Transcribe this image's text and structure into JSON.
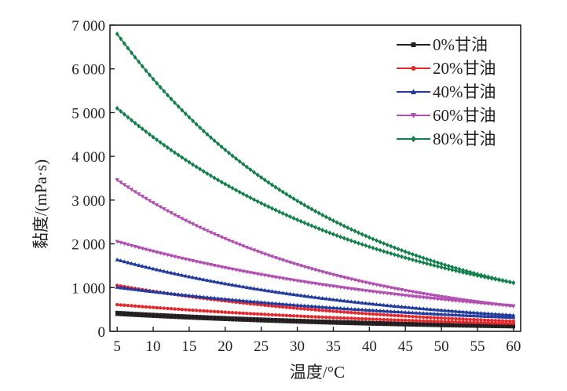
{
  "chart_data": {
    "type": "line",
    "xlabel": "温度/°C",
    "ylabel": "黏度/(mPa·s)",
    "xlim": [
      4,
      61
    ],
    "ylim": [
      0,
      7000
    ],
    "x_ticks": [
      5,
      10,
      15,
      20,
      25,
      30,
      35,
      40,
      45,
      50,
      55,
      60
    ],
    "y_ticks": [
      0,
      1000,
      2000,
      3000,
      4000,
      5000,
      6000,
      7000
    ],
    "y_tick_labels": [
      "0",
      "1 000",
      "2 000",
      "3 000",
      "4 000",
      "5 000",
      "6 000",
      "7 000"
    ],
    "grid": false,
    "legend_position": "top-right",
    "legend": [
      {
        "label": "0%甘油",
        "color": "#231f20",
        "marker": "square"
      },
      {
        "label": "20%甘油",
        "color": "#e8262a",
        "marker": "circle"
      },
      {
        "label": "40%甘油",
        "color": "#1f3a9c",
        "marker": "triangle-up"
      },
      {
        "label": "60%甘油",
        "color": "#b04fb0",
        "marker": "triangle-down"
      },
      {
        "label": "80%甘油",
        "color": "#12804a",
        "marker": "diamond"
      }
    ],
    "series": [
      {
        "legend_index": 0,
        "color": "#231f20",
        "marker": "square",
        "x": [
          5,
          60
        ],
        "y": [
          430,
          130
        ]
      },
      {
        "legend_index": 0,
        "color": "#231f20",
        "marker": "square",
        "x": [
          5,
          60
        ],
        "y": [
          390,
          105
        ]
      },
      {
        "legend_index": 1,
        "color": "#e8262a",
        "marker": "circle",
        "x": [
          5,
          60
        ],
        "y": [
          1050,
          230
        ]
      },
      {
        "legend_index": 1,
        "color": "#e8262a",
        "marker": "circle",
        "x": [
          5,
          60
        ],
        "y": [
          610,
          180
        ]
      },
      {
        "legend_index": 2,
        "color": "#1f3a9c",
        "marker": "triangle-up",
        "x": [
          5,
          60
        ],
        "y": [
          1640,
          370
        ]
      },
      {
        "legend_index": 2,
        "color": "#1f3a9c",
        "marker": "triangle-up",
        "x": [
          5,
          60
        ],
        "y": [
          1010,
          320
        ]
      },
      {
        "legend_index": 3,
        "color": "#b04fb0",
        "marker": "triangle-down",
        "x": [
          5,
          60
        ],
        "y": [
          3460,
          570
        ]
      },
      {
        "legend_index": 3,
        "color": "#b04fb0",
        "marker": "triangle-down",
        "x": [
          5,
          60
        ],
        "y": [
          2050,
          580
        ]
      },
      {
        "legend_index": 4,
        "color": "#12804a",
        "marker": "diamond",
        "x": [
          5,
          60
        ],
        "y": [
          6800,
          1110
        ]
      },
      {
        "legend_index": 4,
        "color": "#12804a",
        "marker": "diamond",
        "x": [
          5,
          60
        ],
        "y": [
          5100,
          1110
        ]
      }
    ]
  }
}
